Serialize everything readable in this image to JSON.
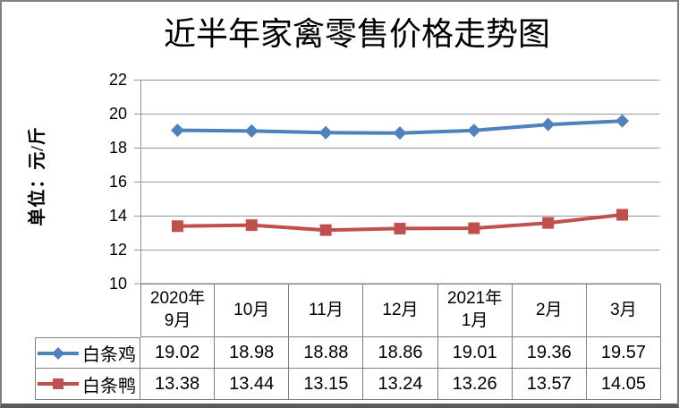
{
  "title": "近半年家禽零售价格走势图",
  "ylabel": "单位：元/斤",
  "colors": {
    "series_blue": "#4F81BD",
    "series_red": "#C0504D",
    "grid": "#969696",
    "axis": "#808080",
    "table_border": "#808080",
    "frame_border": "#808080",
    "text": "#000000"
  },
  "chart_data": {
    "type": "line",
    "title": "近半年家禽零售价格走势图",
    "ylabel": "单位：元/斤",
    "categories": [
      "2020年9月",
      "10月",
      "11月",
      "12月",
      "2021年1月",
      "2月",
      "3月"
    ],
    "categories_display": [
      "2020年\n9月",
      "10月",
      "11月",
      "12月",
      "2021年\n1月",
      "2月",
      "3月"
    ],
    "series": [
      {
        "name": "白条鸡",
        "color": "#4F81BD",
        "marker": "diamond",
        "values": [
          19.02,
          18.98,
          18.88,
          18.86,
          19.01,
          19.36,
          19.57
        ]
      },
      {
        "name": "白条鸭",
        "color": "#C0504D",
        "marker": "square",
        "values": [
          13.38,
          13.44,
          13.15,
          13.24,
          13.26,
          13.57,
          14.05
        ]
      }
    ],
    "ylim": [
      10,
      22
    ],
    "yticks": [
      22,
      20,
      18,
      16,
      14,
      12,
      10
    ],
    "grid": true,
    "legend_position": "table-left"
  }
}
